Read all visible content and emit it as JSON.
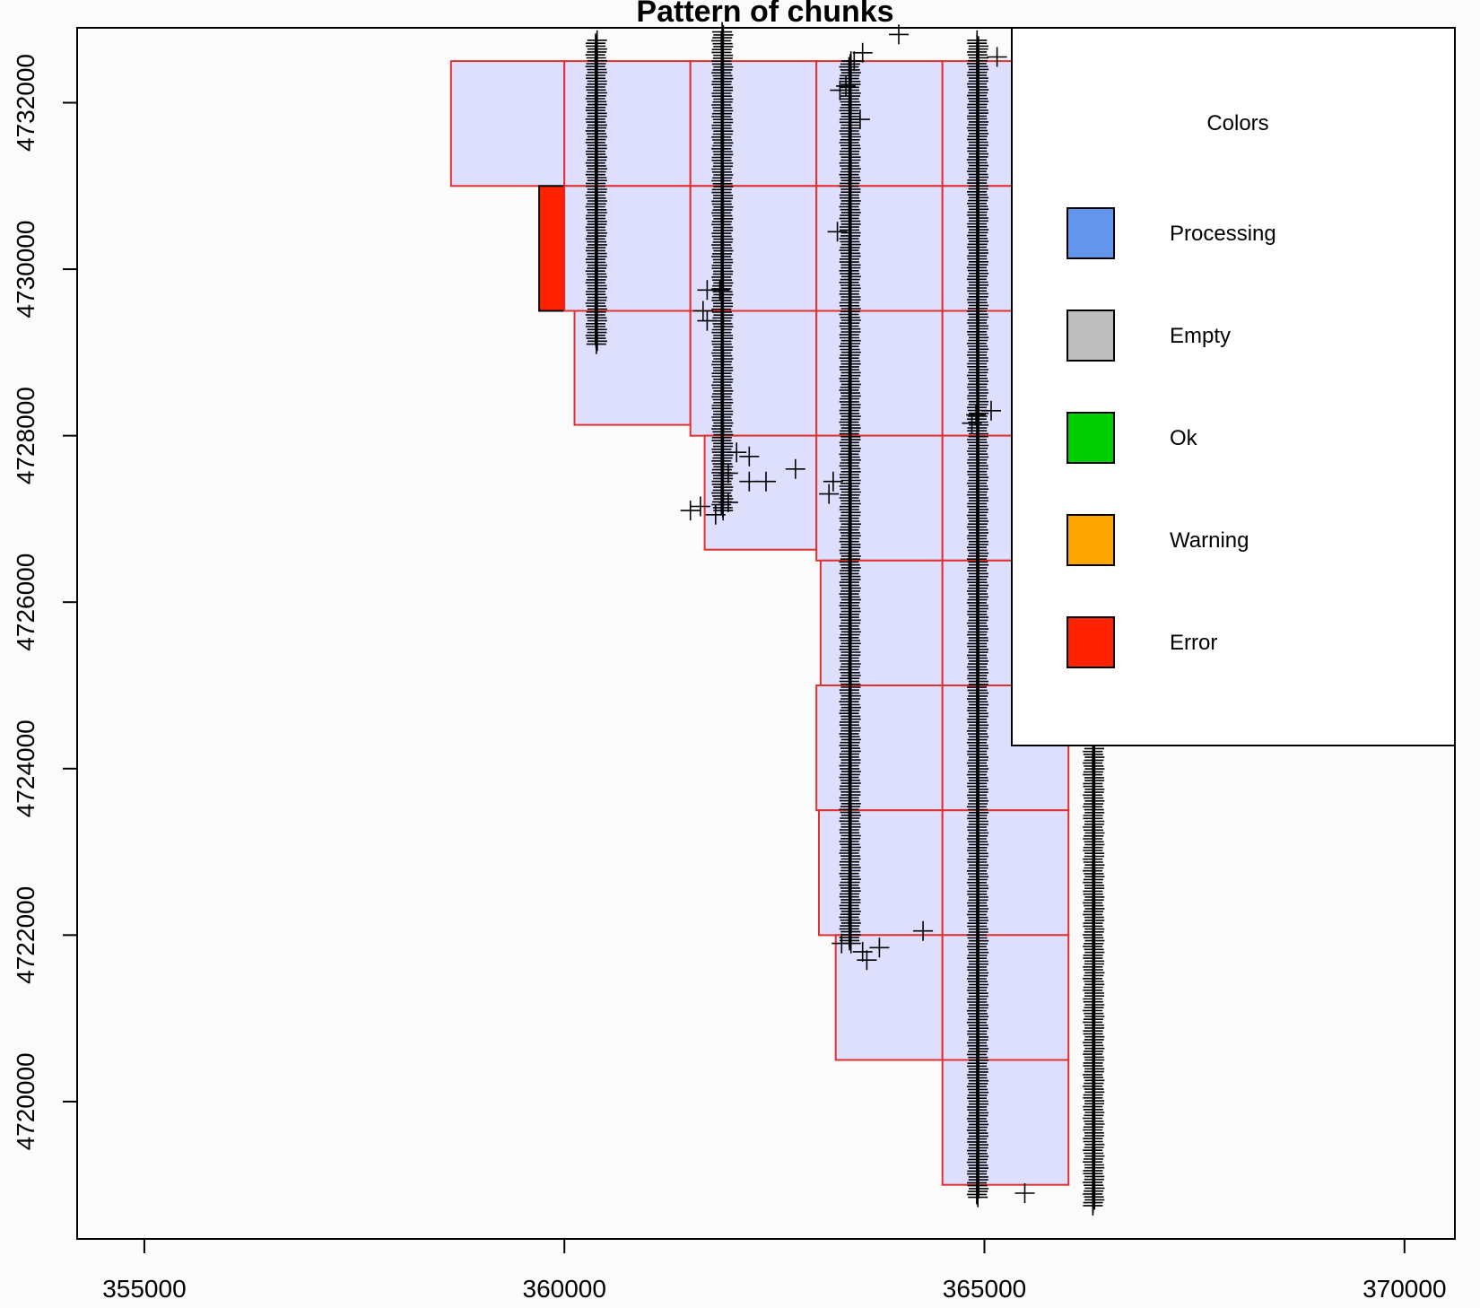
{
  "chart_data": {
    "type": "scatter",
    "title": "Pattern of chunks",
    "xlabel": "",
    "ylabel": "",
    "xlim": [
      354200,
      370600
    ],
    "ylim": [
      4718350,
      4732900
    ],
    "x_ticks": [
      355000,
      360000,
      365000,
      370000
    ],
    "x_tick_labels": [
      "355000",
      "360000",
      "365000",
      "370000"
    ],
    "y_ticks": [
      4720000,
      4722000,
      4724000,
      4726000,
      4728000,
      4730000,
      4732000
    ],
    "y_tick_labels": [
      "4720000",
      "4722000",
      "4724000",
      "4726000",
      "4728000",
      "4730000",
      "4732000"
    ],
    "grid": false,
    "legend": {
      "position": "top-right",
      "title": "Colors",
      "entries": [
        {
          "label": "Processing",
          "color": "#6495ED"
        },
        {
          "label": "Empty",
          "color": "#BEBEBE"
        },
        {
          "label": "Ok",
          "color": "#00CD00"
        },
        {
          "label": "Warning",
          "color": "#FFA500"
        },
        {
          "label": "Error",
          "color": "#FF2200"
        }
      ]
    },
    "chunk_fill": "#DEDFFC",
    "chunk_border": "#E03030",
    "chunks": [
      {
        "x0": 358650,
        "x1": 360000,
        "y0": 4731000,
        "y1": 4732500,
        "status": "pending"
      },
      {
        "x0": 360000,
        "x1": 361500,
        "y0": 4731000,
        "y1": 4732500,
        "status": "pending"
      },
      {
        "x0": 361500,
        "x1": 363000,
        "y0": 4731000,
        "y1": 4732500,
        "status": "pending"
      },
      {
        "x0": 363000,
        "x1": 364500,
        "y0": 4731000,
        "y1": 4732500,
        "status": "pending"
      },
      {
        "x0": 364500,
        "x1": 366000,
        "y0": 4731000,
        "y1": 4732500,
        "status": "pending"
      },
      {
        "x0": 359700,
        "x1": 360000,
        "y0": 4729500,
        "y1": 4731000,
        "status": "error"
      },
      {
        "x0": 360000,
        "x1": 361500,
        "y0": 4729500,
        "y1": 4731000,
        "status": "pending"
      },
      {
        "x0": 361500,
        "x1": 363000,
        "y0": 4729500,
        "y1": 4731000,
        "status": "pending"
      },
      {
        "x0": 363000,
        "x1": 364500,
        "y0": 4729500,
        "y1": 4731000,
        "status": "pending"
      },
      {
        "x0": 364500,
        "x1": 366000,
        "y0": 4729500,
        "y1": 4731000,
        "status": "pending"
      },
      {
        "x0": 360120,
        "x1": 361500,
        "y0": 4728130,
        "y1": 4729500,
        "status": "pending"
      },
      {
        "x0": 361500,
        "x1": 363000,
        "y0": 4728000,
        "y1": 4729500,
        "status": "pending"
      },
      {
        "x0": 363000,
        "x1": 364500,
        "y0": 4728000,
        "y1": 4729500,
        "status": "pending"
      },
      {
        "x0": 364500,
        "x1": 366000,
        "y0": 4728000,
        "y1": 4729500,
        "status": "pending"
      },
      {
        "x0": 361670,
        "x1": 363000,
        "y0": 4726630,
        "y1": 4728000,
        "status": "pending"
      },
      {
        "x0": 363000,
        "x1": 364500,
        "y0": 4726500,
        "y1": 4728000,
        "status": "pending"
      },
      {
        "x0": 364500,
        "x1": 366000,
        "y0": 4726500,
        "y1": 4728000,
        "status": "pending"
      },
      {
        "x0": 363050,
        "x1": 364500,
        "y0": 4725000,
        "y1": 4726500,
        "status": "pending"
      },
      {
        "x0": 364500,
        "x1": 366000,
        "y0": 4725000,
        "y1": 4726500,
        "status": "pending"
      },
      {
        "x0": 363000,
        "x1": 364500,
        "y0": 4723500,
        "y1": 4725000,
        "status": "pending"
      },
      {
        "x0": 364500,
        "x1": 366000,
        "y0": 4723500,
        "y1": 4725000,
        "status": "pending"
      },
      {
        "x0": 363030,
        "x1": 364500,
        "y0": 4722000,
        "y1": 4723500,
        "status": "pending"
      },
      {
        "x0": 364500,
        "x1": 366000,
        "y0": 4722000,
        "y1": 4723500,
        "status": "pending"
      },
      {
        "x0": 363230,
        "x1": 364500,
        "y0": 4720500,
        "y1": 4722000,
        "status": "pending"
      },
      {
        "x0": 364500,
        "x1": 366000,
        "y0": 4720500,
        "y1": 4722000,
        "status": "pending"
      },
      {
        "x0": 364500,
        "x1": 366000,
        "y0": 4719000,
        "y1": 4720500,
        "status": "pending"
      }
    ],
    "flightlines": [
      {
        "x": 360380,
        "y0": 4729100,
        "y1": 4732750
      },
      {
        "x": 361880,
        "y0": 4727100,
        "y1": 4732850
      },
      {
        "x": 363400,
        "y0": 4721900,
        "y1": 4732500
      },
      {
        "x": 364920,
        "y0": 4718850,
        "y1": 4732750
      },
      {
        "x": 366300,
        "y0": 4718750,
        "y1": 4732600
      }
    ],
    "scattered_points": [
      [
        363980,
        4732820
      ],
      [
        363550,
        4732600
      ],
      [
        363450,
        4732500
      ],
      [
        365150,
        4732550
      ],
      [
        363280,
        4732150
      ],
      [
        363350,
        4732200
      ],
      [
        363520,
        4731800
      ],
      [
        363250,
        4730450
      ],
      [
        361700,
        4729750
      ],
      [
        361850,
        4729750
      ],
      [
        361650,
        4729500
      ],
      [
        361700,
        4729380
      ],
      [
        364900,
        4728250
      ],
      [
        365080,
        4728300
      ],
      [
        364850,
        4728150
      ],
      [
        365650,
        4728000
      ],
      [
        362050,
        4727800
      ],
      [
        362200,
        4727750
      ],
      [
        362750,
        4727600
      ],
      [
        361950,
        4727550
      ],
      [
        362200,
        4727450
      ],
      [
        362400,
        4727450
      ],
      [
        363200,
        4727450
      ],
      [
        363150,
        4727300
      ],
      [
        361500,
        4727100
      ],
      [
        361620,
        4727150
      ],
      [
        361950,
        4727200
      ],
      [
        361800,
        4727050
      ],
      [
        363300,
        4721900
      ],
      [
        363550,
        4721800
      ],
      [
        363750,
        4721850
      ],
      [
        363600,
        4721700
      ],
      [
        364270,
        4722050
      ],
      [
        365480,
        4718900
      ]
    ]
  }
}
